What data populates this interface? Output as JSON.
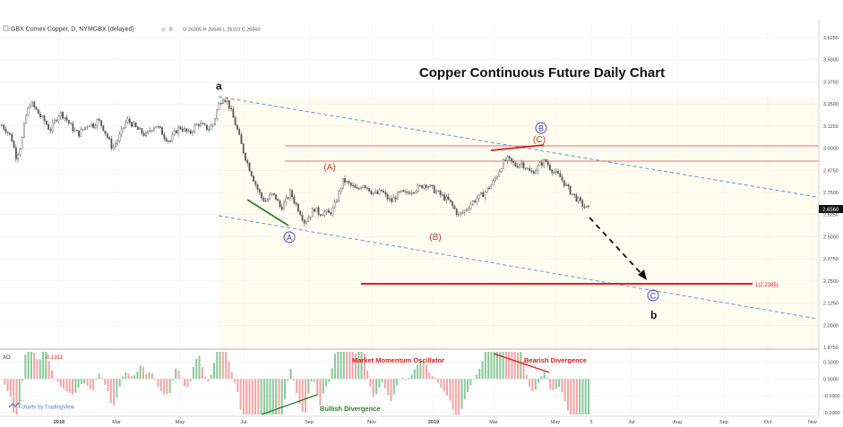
{
  "header": {
    "symbol": "GBX Comex Copper, D, NYMGBX (delayed)",
    "ohlc": "O 26305  H 26645  L 26110  C 26560"
  },
  "branding": {
    "label": "charts by TradingView"
  },
  "chart_data": {
    "type": "candlestick",
    "title": "Copper Continuous Future Daily Chart",
    "y_axis": {
      "min": 1.95,
      "max": 3.66,
      "ticks": [
        "3.6250",
        "3.5000",
        "3.3750",
        "3.2500",
        "3.1250",
        "3.0000",
        "2.8750",
        "2.7500",
        "2.6250",
        "2.5000",
        "2.3750",
        "2.2500",
        "2.1250",
        "2.0000",
        "1.8750"
      ],
      "last_price_label": "2.6560",
      "last_price": 2.656
    },
    "x_axis": {
      "tick_labels": [
        "2018",
        "Mar",
        "May",
        "Jul",
        "Sep",
        "Nov",
        "2019",
        "Mar",
        "May",
        "5",
        "Jul",
        "Aug",
        "Sep",
        "Oct",
        "Nov"
      ]
    },
    "price_path": [
      [
        0,
        3.13
      ],
      [
        0.05,
        3.1
      ],
      [
        0.1,
        3.06
      ],
      [
        0.15,
        2.95
      ],
      [
        0.2,
        3.02
      ],
      [
        0.25,
        3.18
      ],
      [
        0.3,
        3.26
      ],
      [
        0.35,
        3.22
      ],
      [
        0.4,
        3.18
      ],
      [
        0.45,
        3.15
      ],
      [
        0.5,
        3.1
      ],
      [
        0.55,
        3.15
      ],
      [
        0.6,
        3.2
      ],
      [
        0.65,
        3.18
      ],
      [
        0.7,
        3.14
      ],
      [
        0.75,
        3.1
      ],
      [
        0.8,
        3.08
      ],
      [
        0.85,
        3.11
      ],
      [
        0.9,
        3.14
      ],
      [
        0.95,
        3.13
      ],
      [
        1.0,
        3.16
      ],
      [
        1.05,
        3.12
      ],
      [
        1.1,
        3.06
      ],
      [
        1.15,
        3.0
      ],
      [
        1.2,
        3.04
      ],
      [
        1.25,
        3.1
      ],
      [
        1.3,
        3.16
      ],
      [
        1.35,
        3.14
      ],
      [
        1.4,
        3.11
      ],
      [
        1.45,
        3.09
      ],
      [
        1.5,
        3.07
      ],
      [
        1.55,
        3.11
      ],
      [
        1.6,
        3.13
      ],
      [
        1.65,
        3.1
      ],
      [
        1.7,
        3.06
      ],
      [
        1.75,
        3.04
      ],
      [
        1.8,
        3.09
      ],
      [
        1.85,
        3.12
      ],
      [
        1.9,
        3.1
      ],
      [
        1.95,
        3.08
      ],
      [
        2.0,
        3.12
      ],
      [
        2.05,
        3.14
      ],
      [
        2.1,
        3.12
      ],
      [
        2.15,
        3.11
      ],
      [
        2.2,
        3.14
      ],
      [
        2.25,
        3.24
      ],
      [
        2.3,
        3.29
      ],
      [
        2.35,
        3.26
      ],
      [
        2.4,
        3.18
      ],
      [
        2.45,
        3.1
      ],
      [
        2.5,
        3.0
      ],
      [
        2.55,
        2.92
      ],
      [
        2.6,
        2.85
      ],
      [
        2.65,
        2.78
      ],
      [
        2.7,
        2.72
      ],
      [
        2.75,
        2.7
      ],
      [
        2.8,
        2.74
      ],
      [
        2.85,
        2.72
      ],
      [
        2.9,
        2.66
      ],
      [
        2.95,
        2.7
      ],
      [
        3.0,
        2.75
      ],
      [
        3.05,
        2.69
      ],
      [
        3.1,
        2.64
      ],
      [
        3.15,
        2.58
      ],
      [
        3.2,
        2.62
      ],
      [
        3.25,
        2.66
      ],
      [
        3.3,
        2.63
      ],
      [
        3.35,
        2.64
      ],
      [
        3.4,
        2.63
      ],
      [
        3.45,
        2.66
      ],
      [
        3.5,
        2.74
      ],
      [
        3.55,
        2.82
      ],
      [
        3.6,
        2.8
      ],
      [
        3.65,
        2.78
      ],
      [
        3.7,
        2.76
      ],
      [
        3.75,
        2.8
      ],
      [
        3.8,
        2.78
      ],
      [
        3.85,
        2.75
      ],
      [
        3.9,
        2.74
      ],
      [
        3.95,
        2.76
      ],
      [
        4.0,
        2.72
      ],
      [
        4.05,
        2.7
      ],
      [
        4.1,
        2.73
      ],
      [
        4.15,
        2.75
      ],
      [
        4.2,
        2.74
      ],
      [
        4.25,
        2.76
      ],
      [
        4.3,
        2.77
      ],
      [
        4.35,
        2.78
      ],
      [
        4.4,
        2.8
      ],
      [
        4.45,
        2.78
      ],
      [
        4.5,
        2.76
      ],
      [
        4.55,
        2.74
      ],
      [
        4.6,
        2.72
      ],
      [
        4.65,
        2.7
      ],
      [
        4.7,
        2.66
      ],
      [
        4.75,
        2.62
      ],
      [
        4.8,
        2.64
      ],
      [
        4.85,
        2.67
      ],
      [
        4.9,
        2.7
      ],
      [
        4.95,
        2.72
      ],
      [
        5.0,
        2.74
      ],
      [
        5.05,
        2.77
      ],
      [
        5.1,
        2.8
      ],
      [
        5.15,
        2.85
      ],
      [
        5.2,
        2.91
      ],
      [
        5.25,
        2.94
      ],
      [
        5.3,
        2.92
      ],
      [
        5.35,
        2.9
      ],
      [
        5.4,
        2.92
      ],
      [
        5.45,
        2.89
      ],
      [
        5.5,
        2.86
      ],
      [
        5.55,
        2.88
      ],
      [
        5.6,
        2.91
      ],
      [
        5.65,
        2.93
      ],
      [
        5.7,
        2.89
      ],
      [
        5.75,
        2.86
      ],
      [
        5.8,
        2.84
      ],
      [
        5.85,
        2.8
      ],
      [
        5.9,
        2.76
      ],
      [
        5.95,
        2.73
      ],
      [
        6.0,
        2.7
      ],
      [
        6.05,
        2.67
      ],
      [
        6.1,
        2.656
      ]
    ],
    "awesome_oscillator": {
      "label": "AO",
      "value": "-0.1311",
      "ticks": [
        "0.1000",
        "0.0000",
        "-0.1000",
        "-0.2000"
      ],
      "min": -0.21,
      "max": 0.16
    },
    "levels": [
      {
        "name": "resistance-upper",
        "price": 3.02
      },
      {
        "name": "resistance-lower",
        "price": 2.93
      },
      {
        "name": "target",
        "price": 2.2385,
        "label": "1(2.2385)"
      }
    ],
    "annotations": {
      "wave_a": "a",
      "wave_b": "b",
      "wave_A_circle": "A",
      "wave_B_circle": "B",
      "wave_C_circle": "C",
      "wave_A_paren": "(A)",
      "wave_B_paren": "(B)",
      "wave_C_paren": "(C)",
      "momentum_label": "Market Momentum Oscillator",
      "bearish_label": "Bearish Divergence",
      "bullish_label": "Bullish Divergence"
    },
    "colors": {
      "candle": "#555555",
      "up_bar": "#89c999",
      "down_bar": "#f2a5a5",
      "channel": "#5b8fe0",
      "resistance": "#e07575",
      "target": "#e02020",
      "wave_red": "#c0392b",
      "wave_blue": "#2f3ea8",
      "divergence_green": "#2e7d32",
      "divergence_red": "#d81b1b",
      "last_price_bg": "#111111"
    }
  }
}
